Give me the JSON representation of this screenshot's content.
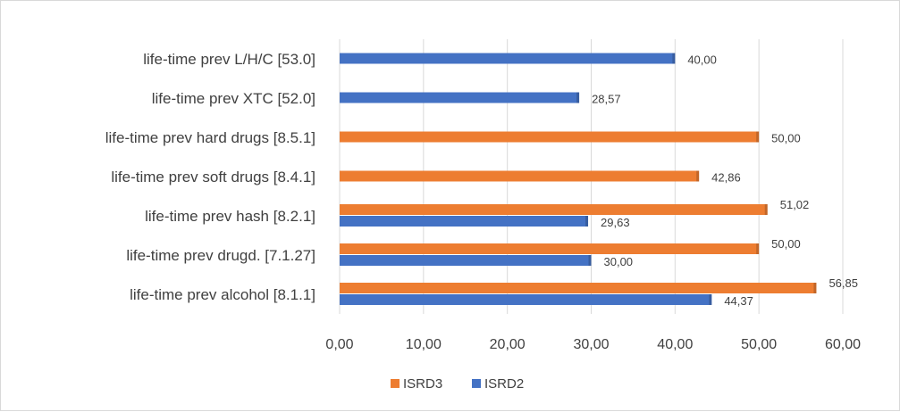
{
  "chart_data": {
    "type": "bar",
    "orientation": "horizontal",
    "categories": [
      "life-time prev L/H/C [53.0]",
      "life-time prev XTC [52.0]",
      "life-time prev hard drugs [8.5.1]",
      "life-time prev soft drugs [8.4.1]",
      "life-time prev hash [8.2.1]",
      "life-time prev drugd. [7.1.27]",
      "life-time prev alcohol [8.1.1]"
    ],
    "series": [
      {
        "name": "ISRD3",
        "color": "#ED7D31",
        "values": [
          null,
          null,
          50.0,
          42.86,
          51.02,
          50.0,
          56.85
        ],
        "labels": [
          "",
          "",
          "50,00",
          "42,86",
          "51,02",
          "50,00",
          "56,85"
        ]
      },
      {
        "name": "ISRD2",
        "color": "#4472C4",
        "values": [
          40.0,
          28.57,
          null,
          null,
          29.63,
          30.0,
          44.37
        ],
        "labels": [
          "40,00",
          "28,57",
          "",
          "",
          "29,63",
          "30,00",
          "44,37"
        ]
      }
    ],
    "xlim": [
      0,
      60
    ],
    "xticks": [
      0,
      10,
      20,
      30,
      40,
      50,
      60
    ],
    "xtick_labels": [
      "0,00",
      "10,00",
      "20,00",
      "30,00",
      "40,00",
      "50,00",
      "60,00"
    ],
    "title": "",
    "xlabel": "",
    "ylabel": "",
    "grid": true,
    "legend": "bottom",
    "legend_entries": [
      "ISRD3",
      "ISRD2"
    ]
  }
}
